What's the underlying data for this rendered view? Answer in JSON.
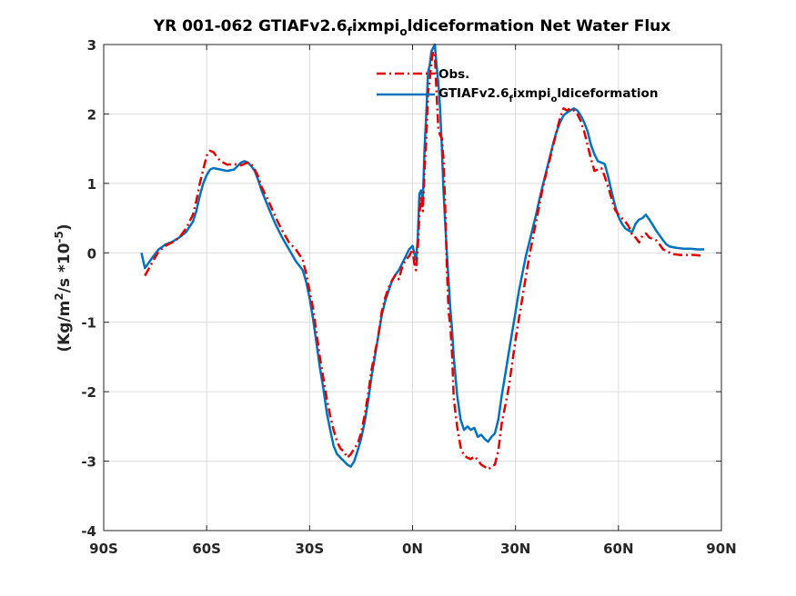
{
  "chart_data": {
    "type": "line",
    "title": "YR 001-062 GTIAFv2.6",
    "title_sub_f": "f",
    "title_mid": "ixmpi",
    "title_sub_o": "o",
    "title_tail": "ldiceformation  Net Water Flux",
    "ylabel": "(Kg/m² /s *10⁻⁵)",
    "ylabel_parts": {
      "a": "(Kg/m",
      "sup2": "2",
      "b": "/s *10",
      "supexp": "-5",
      "c": ")"
    },
    "xlim": [
      -90,
      90
    ],
    "ylim": [
      -4,
      3
    ],
    "grid": true,
    "legend_position": "top-right",
    "x_ticks": [
      -90,
      -60,
      -30,
      0,
      30,
      60,
      90
    ],
    "x_tick_labels": [
      "90S",
      "60S",
      "30S",
      "0N",
      "30N",
      "60N",
      "90N"
    ],
    "y_ticks": [
      -4,
      -3,
      -2,
      -1,
      0,
      1,
      2,
      3
    ],
    "y_tick_labels": [
      "-4",
      "-3",
      "-2",
      "-1",
      "0",
      "1",
      "2",
      "3"
    ],
    "series": [
      {
        "name": "Obs.",
        "color": "#e00000",
        "dash": "dashdot",
        "points": [
          [
            -78,
            -0.33
          ],
          [
            -76,
            -0.15
          ],
          [
            -74,
            0.02
          ],
          [
            -72,
            0.1
          ],
          [
            -70,
            0.15
          ],
          [
            -68,
            0.22
          ],
          [
            -66,
            0.35
          ],
          [
            -64,
            0.55
          ],
          [
            -63,
            0.75
          ],
          [
            -62,
            1.0
          ],
          [
            -61,
            1.2
          ],
          [
            -60,
            1.4
          ],
          [
            -59,
            1.47
          ],
          [
            -58,
            1.45
          ],
          [
            -57,
            1.38
          ],
          [
            -56,
            1.32
          ],
          [
            -54,
            1.27
          ],
          [
            -52,
            1.28
          ],
          [
            -50,
            1.26
          ],
          [
            -48,
            1.3
          ],
          [
            -47,
            1.28
          ],
          [
            -46,
            1.2
          ],
          [
            -45,
            1.1
          ],
          [
            -44,
            0.95
          ],
          [
            -42,
            0.75
          ],
          [
            -40,
            0.52
          ],
          [
            -38,
            0.32
          ],
          [
            -36,
            0.15
          ],
          [
            -34,
            0.05
          ],
          [
            -32,
            -0.1
          ],
          [
            -31,
            -0.3
          ],
          [
            -30,
            -0.55
          ],
          [
            -29,
            -0.8
          ],
          [
            -28,
            -1.15
          ],
          [
            -27,
            -1.5
          ],
          [
            -26,
            -1.8
          ],
          [
            -25,
            -2.1
          ],
          [
            -24,
            -2.35
          ],
          [
            -23,
            -2.55
          ],
          [
            -22,
            -2.72
          ],
          [
            -21,
            -2.82
          ],
          [
            -20,
            -2.86
          ],
          [
            -19,
            -2.95
          ],
          [
            -18,
            -2.9
          ],
          [
            -17,
            -2.82
          ],
          [
            -16,
            -2.75
          ],
          [
            -15,
            -2.6
          ],
          [
            -14,
            -2.35
          ],
          [
            -13,
            -2.05
          ],
          [
            -12,
            -1.7
          ],
          [
            -11,
            -1.45
          ],
          [
            -10,
            -1.2
          ],
          [
            -9,
            -0.85
          ],
          [
            -8,
            -0.65
          ],
          [
            -7,
            -0.5
          ],
          [
            -6,
            -0.4
          ],
          [
            -5,
            -0.32
          ],
          [
            -4,
            -0.38
          ],
          [
            -3,
            -0.2
          ],
          [
            -2,
            -0.1
          ],
          [
            -1,
            -0.05
          ],
          [
            0,
            0.05
          ],
          [
            0.5,
            -0.15
          ],
          [
            1,
            -0.25
          ],
          [
            1.5,
            0.05
          ],
          [
            2,
            0.55
          ],
          [
            2.5,
            0.82
          ],
          [
            3,
            0.6
          ],
          [
            3.5,
            1.2
          ],
          [
            4,
            1.65
          ],
          [
            4.5,
            2.3
          ],
          [
            5,
            2.5
          ],
          [
            5.5,
            2.75
          ],
          [
            6,
            2.9
          ],
          [
            6.5,
            2.85
          ],
          [
            7,
            2.3
          ],
          [
            7.5,
            1.8
          ],
          [
            8,
            1.7
          ],
          [
            8.5,
            1.65
          ],
          [
            9,
            1.35
          ],
          [
            9.5,
            0.7
          ],
          [
            10,
            -0.2
          ],
          [
            10.5,
            -0.85
          ],
          [
            11,
            -1.05
          ],
          [
            11.5,
            -1.45
          ],
          [
            12,
            -2.1
          ],
          [
            13,
            -2.5
          ],
          [
            14,
            -2.8
          ],
          [
            15,
            -2.92
          ],
          [
            16,
            -2.95
          ],
          [
            17,
            -2.97
          ],
          [
            18,
            -2.93
          ],
          [
            19,
            -2.98
          ],
          [
            20,
            -3.05
          ],
          [
            21,
            -3.08
          ],
          [
            22,
            -3.12
          ],
          [
            23,
            -3.08
          ],
          [
            24,
            -3.05
          ],
          [
            25,
            -2.85
          ],
          [
            26,
            -2.45
          ],
          [
            27,
            -2.2
          ],
          [
            28,
            -1.95
          ],
          [
            29,
            -1.6
          ],
          [
            30,
            -1.25
          ],
          [
            31,
            -0.95
          ],
          [
            32,
            -0.65
          ],
          [
            33,
            -0.35
          ],
          [
            34,
            -0.05
          ],
          [
            35,
            0.2
          ],
          [
            36,
            0.45
          ],
          [
            37,
            0.7
          ],
          [
            38,
            0.95
          ],
          [
            39,
            1.15
          ],
          [
            40,
            1.35
          ],
          [
            41,
            1.55
          ],
          [
            42,
            1.75
          ],
          [
            43,
            1.95
          ],
          [
            44,
            2.08
          ],
          [
            45,
            2.05
          ],
          [
            46,
            2.08
          ],
          [
            47,
            2.05
          ],
          [
            48,
            2.0
          ],
          [
            49,
            1.9
          ],
          [
            50,
            1.75
          ],
          [
            51,
            1.55
          ],
          [
            52,
            1.35
          ],
          [
            53,
            1.18
          ],
          [
            54,
            1.2
          ],
          [
            55,
            1.22
          ],
          [
            56,
            1.1
          ],
          [
            57,
            0.95
          ],
          [
            58,
            0.78
          ],
          [
            59,
            0.62
          ],
          [
            60,
            0.55
          ],
          [
            61,
            0.5
          ],
          [
            62,
            0.45
          ],
          [
            63,
            0.38
          ],
          [
            64,
            0.25
          ],
          [
            65,
            0.22
          ],
          [
            66,
            0.15
          ],
          [
            67,
            0.25
          ],
          [
            68,
            0.28
          ],
          [
            69,
            0.22
          ],
          [
            70,
            0.2
          ],
          [
            71,
            0.18
          ],
          [
            72,
            0.12
          ],
          [
            73,
            0.05
          ],
          [
            74,
            0.03
          ],
          [
            75,
            0.0
          ],
          [
            76,
            -0.02
          ],
          [
            78,
            -0.03
          ],
          [
            80,
            -0.03
          ],
          [
            82,
            -0.03
          ],
          [
            84,
            -0.04
          ]
        ]
      },
      {
        "name": "GTIAFv2.6",
        "name_sub_f": "f",
        "name_mid": "ixmpi",
        "name_sub_o": "o",
        "name_tail": "ldiceformation",
        "color": "#0072bd",
        "dash": "solid",
        "points": [
          [
            -79,
            0.0
          ],
          [
            -78,
            -0.22
          ],
          [
            -76,
            -0.08
          ],
          [
            -74,
            0.05
          ],
          [
            -72,
            0.12
          ],
          [
            -70,
            0.16
          ],
          [
            -68,
            0.22
          ],
          [
            -66,
            0.3
          ],
          [
            -64,
            0.45
          ],
          [
            -63,
            0.6
          ],
          [
            -62,
            0.82
          ],
          [
            -61,
            1.0
          ],
          [
            -60,
            1.12
          ],
          [
            -59,
            1.2
          ],
          [
            -58,
            1.22
          ],
          [
            -56,
            1.2
          ],
          [
            -54,
            1.18
          ],
          [
            -52,
            1.2
          ],
          [
            -51,
            1.25
          ],
          [
            -50,
            1.3
          ],
          [
            -49,
            1.32
          ],
          [
            -48,
            1.3
          ],
          [
            -47,
            1.25
          ],
          [
            -46,
            1.18
          ],
          [
            -45,
            1.05
          ],
          [
            -44,
            0.9
          ],
          [
            -42,
            0.65
          ],
          [
            -40,
            0.42
          ],
          [
            -38,
            0.22
          ],
          [
            -36,
            0.05
          ],
          [
            -34,
            -0.12
          ],
          [
            -32,
            -0.25
          ],
          [
            -31,
            -0.42
          ],
          [
            -30,
            -0.65
          ],
          [
            -29,
            -0.95
          ],
          [
            -28,
            -1.3
          ],
          [
            -27,
            -1.65
          ],
          [
            -26,
            -1.95
          ],
          [
            -25,
            -2.3
          ],
          [
            -24,
            -2.55
          ],
          [
            -23,
            -2.78
          ],
          [
            -22,
            -2.9
          ],
          [
            -21,
            -2.95
          ],
          [
            -20,
            -3.0
          ],
          [
            -19,
            -3.05
          ],
          [
            -18,
            -3.08
          ],
          [
            -17,
            -3.0
          ],
          [
            -16,
            -2.85
          ],
          [
            -15,
            -2.68
          ],
          [
            -14,
            -2.45
          ],
          [
            -13,
            -2.15
          ],
          [
            -12,
            -1.8
          ],
          [
            -11,
            -1.5
          ],
          [
            -10,
            -1.2
          ],
          [
            -9,
            -0.9
          ],
          [
            -8,
            -0.7
          ],
          [
            -7,
            -0.55
          ],
          [
            -6,
            -0.4
          ],
          [
            -5,
            -0.32
          ],
          [
            -4,
            -0.25
          ],
          [
            -3,
            -0.15
          ],
          [
            -2,
            -0.05
          ],
          [
            -1,
            0.05
          ],
          [
            0,
            0.1
          ],
          [
            0.5,
            0.0
          ],
          [
            1,
            -0.1
          ],
          [
            1.5,
            0.2
          ],
          [
            2,
            0.85
          ],
          [
            2.5,
            0.9
          ],
          [
            3,
            0.75
          ],
          [
            3.5,
            1.5
          ],
          [
            4,
            2.0
          ],
          [
            4.5,
            2.6
          ],
          [
            5,
            2.7
          ],
          [
            5.5,
            2.9
          ],
          [
            6,
            2.95
          ],
          [
            6.5,
            3.0
          ],
          [
            7,
            2.7
          ],
          [
            7.5,
            2.45
          ],
          [
            8,
            2.1
          ],
          [
            8.5,
            1.55
          ],
          [
            9,
            0.9
          ],
          [
            9.5,
            0.45
          ],
          [
            10,
            0.0
          ],
          [
            10.5,
            -0.4
          ],
          [
            11,
            -0.8
          ],
          [
            11.5,
            -1.1
          ],
          [
            12,
            -1.5
          ],
          [
            13,
            -2.05
          ],
          [
            14,
            -2.4
          ],
          [
            15,
            -2.55
          ],
          [
            16,
            -2.5
          ],
          [
            17,
            -2.55
          ],
          [
            18,
            -2.52
          ],
          [
            19,
            -2.65
          ],
          [
            20,
            -2.62
          ],
          [
            21,
            -2.68
          ],
          [
            22,
            -2.72
          ],
          [
            23,
            -2.65
          ],
          [
            24,
            -2.6
          ],
          [
            25,
            -2.4
          ],
          [
            26,
            -2.05
          ],
          [
            27,
            -1.75
          ],
          [
            28,
            -1.45
          ],
          [
            29,
            -1.15
          ],
          [
            30,
            -0.85
          ],
          [
            31,
            -0.55
          ],
          [
            32,
            -0.3
          ],
          [
            33,
            -0.05
          ],
          [
            34,
            0.15
          ],
          [
            35,
            0.35
          ],
          [
            36,
            0.55
          ],
          [
            37,
            0.78
          ],
          [
            38,
            0.98
          ],
          [
            39,
            1.18
          ],
          [
            40,
            1.38
          ],
          [
            41,
            1.58
          ],
          [
            42,
            1.75
          ],
          [
            43,
            1.88
          ],
          [
            44,
            1.98
          ],
          [
            45,
            2.02
          ],
          [
            46,
            2.05
          ],
          [
            47,
            2.08
          ],
          [
            48,
            2.05
          ],
          [
            49,
            1.98
          ],
          [
            50,
            1.88
          ],
          [
            51,
            1.75
          ],
          [
            52,
            1.55
          ],
          [
            53,
            1.42
          ],
          [
            54,
            1.32
          ],
          [
            55,
            1.3
          ],
          [
            56,
            1.28
          ],
          [
            57,
            1.1
          ],
          [
            58,
            0.88
          ],
          [
            59,
            0.68
          ],
          [
            60,
            0.52
          ],
          [
            61,
            0.42
          ],
          [
            62,
            0.35
          ],
          [
            63,
            0.32
          ],
          [
            64,
            0.3
          ],
          [
            65,
            0.42
          ],
          [
            66,
            0.48
          ],
          [
            67,
            0.5
          ],
          [
            68,
            0.55
          ],
          [
            69,
            0.48
          ],
          [
            70,
            0.4
          ],
          [
            71,
            0.32
          ],
          [
            72,
            0.25
          ],
          [
            73,
            0.18
          ],
          [
            74,
            0.12
          ],
          [
            75,
            0.09
          ],
          [
            77,
            0.07
          ],
          [
            79,
            0.06
          ],
          [
            81,
            0.06
          ],
          [
            83,
            0.05
          ],
          [
            85,
            0.05
          ]
        ]
      }
    ]
  }
}
